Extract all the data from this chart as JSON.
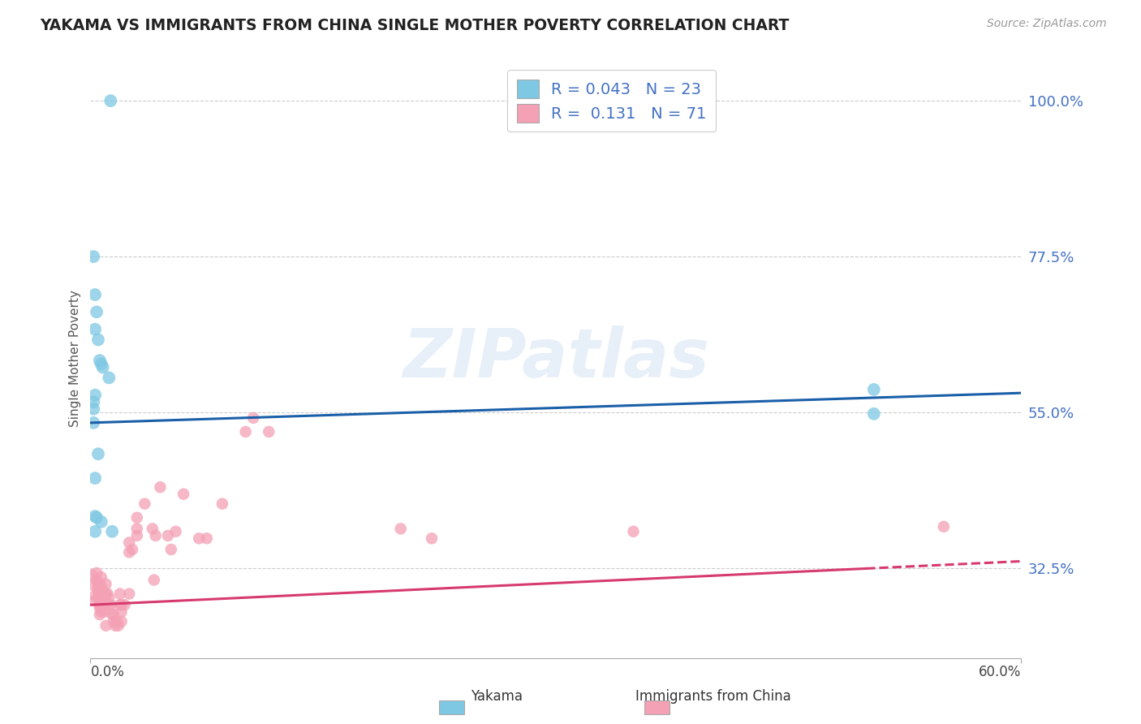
{
  "title": "YAKAMA VS IMMIGRANTS FROM CHINA SINGLE MOTHER POVERTY CORRELATION CHART",
  "source": "Source: ZipAtlas.com",
  "ylabel": "Single Mother Poverty",
  "yticks": [
    0.325,
    0.55,
    0.775,
    1.0
  ],
  "ytick_labels": [
    "32.5%",
    "55.0%",
    "77.5%",
    "100.0%"
  ],
  "xlim": [
    0.0,
    0.6
  ],
  "ylim": [
    0.195,
    1.06
  ],
  "watermark": "ZIPatlas",
  "blue_R": 0.043,
  "blue_N": 23,
  "pink_R": 0.131,
  "pink_N": 71,
  "blue_color": "#7ec8e3",
  "pink_color": "#f4a0b5",
  "blue_line_color": "#1a5fa8",
  "pink_line_color": "#d63a6e",
  "blue_line": [
    0.0,
    0.535,
    0.6,
    0.578
  ],
  "pink_line_solid_end": 0.5,
  "pink_line": [
    0.0,
    0.272,
    0.6,
    0.335
  ],
  "blue_scatter": [
    [
      0.013,
      1.0
    ],
    [
      0.002,
      0.775
    ],
    [
      0.003,
      0.72
    ],
    [
      0.004,
      0.695
    ],
    [
      0.003,
      0.67
    ],
    [
      0.005,
      0.655
    ],
    [
      0.006,
      0.625
    ],
    [
      0.007,
      0.62
    ],
    [
      0.008,
      0.615
    ],
    [
      0.003,
      0.575
    ],
    [
      0.002,
      0.565
    ],
    [
      0.002,
      0.555
    ],
    [
      0.002,
      0.535
    ],
    [
      0.012,
      0.6
    ],
    [
      0.005,
      0.49
    ],
    [
      0.003,
      0.455
    ],
    [
      0.003,
      0.4
    ],
    [
      0.004,
      0.398
    ],
    [
      0.007,
      0.392
    ],
    [
      0.003,
      0.378
    ],
    [
      0.014,
      0.378
    ],
    [
      0.505,
      0.583
    ],
    [
      0.505,
      0.548
    ]
  ],
  "pink_scatter": [
    [
      0.001,
      0.315
    ],
    [
      0.002,
      0.3
    ],
    [
      0.003,
      0.285
    ],
    [
      0.003,
      0.278
    ],
    [
      0.004,
      0.318
    ],
    [
      0.004,
      0.308
    ],
    [
      0.005,
      0.303
    ],
    [
      0.005,
      0.298
    ],
    [
      0.005,
      0.292
    ],
    [
      0.005,
      0.282
    ],
    [
      0.006,
      0.302
    ],
    [
      0.006,
      0.288
    ],
    [
      0.006,
      0.272
    ],
    [
      0.006,
      0.268
    ],
    [
      0.006,
      0.258
    ],
    [
      0.007,
      0.312
    ],
    [
      0.007,
      0.298
    ],
    [
      0.007,
      0.268
    ],
    [
      0.007,
      0.262
    ],
    [
      0.008,
      0.292
    ],
    [
      0.008,
      0.288
    ],
    [
      0.008,
      0.278
    ],
    [
      0.009,
      0.278
    ],
    [
      0.009,
      0.272
    ],
    [
      0.009,
      0.262
    ],
    [
      0.01,
      0.288
    ],
    [
      0.01,
      0.302
    ],
    [
      0.01,
      0.242
    ],
    [
      0.011,
      0.288
    ],
    [
      0.012,
      0.282
    ],
    [
      0.012,
      0.272
    ],
    [
      0.013,
      0.272
    ],
    [
      0.014,
      0.258
    ],
    [
      0.015,
      0.258
    ],
    [
      0.015,
      0.248
    ],
    [
      0.016,
      0.242
    ],
    [
      0.017,
      0.248
    ],
    [
      0.018,
      0.242
    ],
    [
      0.019,
      0.288
    ],
    [
      0.019,
      0.272
    ],
    [
      0.02,
      0.272
    ],
    [
      0.02,
      0.262
    ],
    [
      0.02,
      0.248
    ],
    [
      0.022,
      0.272
    ],
    [
      0.025,
      0.362
    ],
    [
      0.025,
      0.348
    ],
    [
      0.025,
      0.288
    ],
    [
      0.027,
      0.352
    ],
    [
      0.03,
      0.398
    ],
    [
      0.03,
      0.382
    ],
    [
      0.03,
      0.372
    ],
    [
      0.035,
      0.418
    ],
    [
      0.04,
      0.382
    ],
    [
      0.041,
      0.308
    ],
    [
      0.042,
      0.372
    ],
    [
      0.045,
      0.442
    ],
    [
      0.05,
      0.372
    ],
    [
      0.052,
      0.352
    ],
    [
      0.055,
      0.378
    ],
    [
      0.06,
      0.432
    ],
    [
      0.07,
      0.368
    ],
    [
      0.075,
      0.368
    ],
    [
      0.085,
      0.418
    ],
    [
      0.1,
      0.522
    ],
    [
      0.105,
      0.542
    ],
    [
      0.115,
      0.522
    ],
    [
      0.2,
      0.382
    ],
    [
      0.22,
      0.368
    ],
    [
      0.35,
      0.378
    ],
    [
      0.55,
      0.385
    ]
  ]
}
